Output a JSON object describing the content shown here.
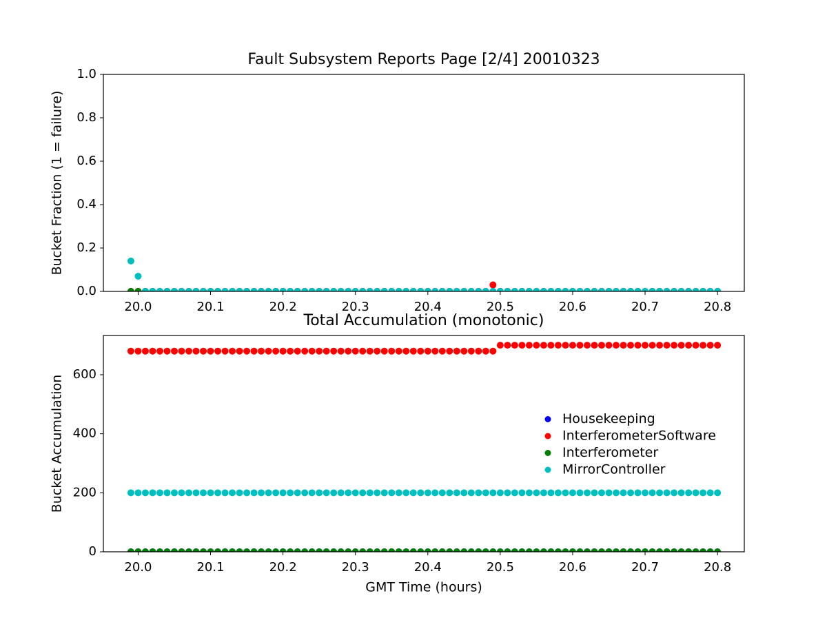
{
  "chart_data": [
    {
      "type": "scatter",
      "title": "Fault Subsystem Reports Page [2/4] 20010323",
      "y_label": "Bucket Fraction (1 = failure)",
      "xlim": [
        19.952,
        20.837
      ],
      "ylim": [
        0,
        1
      ],
      "xticks": [
        {
          "value": 20.0,
          "label": "20.0"
        },
        20.1,
        20.2,
        20.3,
        20.4,
        20.5,
        20.6,
        20.7,
        20.8
      ],
      "yticks": [
        {
          "value": 0,
          "label": "0.0"
        },
        0.2,
        0.4,
        0.6,
        0.8,
        {
          "value": 1,
          "label": "1.0"
        }
      ],
      "x": [
        19.99,
        20.0,
        20.01,
        20.02,
        20.03,
        20.04,
        20.05,
        20.06,
        20.07,
        20.08,
        20.09,
        20.1,
        20.11,
        20.12,
        20.13,
        20.14,
        20.15,
        20.16,
        20.17,
        20.18,
        20.19,
        20.2,
        20.21,
        20.22,
        20.23,
        20.24,
        20.25,
        20.26,
        20.27,
        20.28,
        20.29,
        20.3,
        20.31,
        20.32,
        20.33,
        20.34,
        20.35,
        20.36,
        20.37,
        20.38,
        20.39,
        20.4,
        20.41,
        20.42,
        20.43,
        20.44,
        20.45,
        20.46,
        20.47,
        20.48,
        20.49,
        20.5,
        20.51,
        20.52,
        20.53,
        20.54,
        20.55,
        20.56,
        20.57,
        20.58,
        20.59,
        20.6,
        20.61,
        20.62,
        20.63,
        20.64,
        20.65,
        20.66,
        20.67,
        20.68,
        20.69,
        20.7,
        20.71,
        20.72,
        20.73,
        20.74,
        20.75,
        20.76,
        20.77,
        20.78,
        20.79,
        20.8
      ],
      "series": [
        {
          "name": "Housekeeping",
          "color": "#0000ff",
          "values": [
            0,
            0,
            0,
            0,
            0,
            0,
            0,
            0,
            0,
            0,
            0,
            0,
            0,
            0,
            0,
            0,
            0,
            0,
            0,
            0,
            0,
            0,
            0,
            0,
            0,
            0,
            0,
            0,
            0,
            0,
            0,
            0,
            0,
            0,
            0,
            0,
            0,
            0,
            0,
            0,
            0,
            0,
            0,
            0,
            0,
            0,
            0,
            0,
            0,
            0,
            0,
            0,
            0,
            0,
            0,
            0,
            0,
            0,
            0,
            0,
            0,
            0,
            0,
            0,
            0,
            0,
            0,
            0,
            0,
            0,
            0,
            0,
            0,
            0,
            0,
            0,
            0,
            0,
            0,
            0,
            0,
            0
          ]
        },
        {
          "name": "InterferometerSoftware",
          "color": "#ff0000",
          "values": [
            0,
            0,
            0,
            0,
            0,
            0,
            0,
            0,
            0,
            0,
            0,
            0,
            0,
            0,
            0,
            0,
            0,
            0,
            0,
            0,
            0,
            0,
            0,
            0,
            0,
            0,
            0,
            0,
            0,
            0,
            0,
            0,
            0,
            0,
            0,
            0,
            0,
            0,
            0,
            0,
            0,
            0,
            0,
            0,
            0,
            0,
            0,
            0,
            0,
            0,
            0.03,
            0,
            0,
            0,
            0,
            0,
            0,
            0,
            0,
            0,
            0,
            0,
            0,
            0,
            0,
            0,
            0,
            0,
            0,
            0,
            0,
            0,
            0,
            0,
            0,
            0,
            0,
            0,
            0,
            0,
            0,
            0
          ]
        },
        {
          "name": "Interferometer",
          "color": "#008000",
          "values": [
            0,
            0,
            0,
            0,
            0,
            0,
            0,
            0,
            0,
            0,
            0,
            0,
            0,
            0,
            0,
            0,
            0,
            0,
            0,
            0,
            0,
            0,
            0,
            0,
            0,
            0,
            0,
            0,
            0,
            0,
            0,
            0,
            0,
            0,
            0,
            0,
            0,
            0,
            0,
            0,
            0,
            0,
            0,
            0,
            0,
            0,
            0,
            0,
            0,
            0,
            0,
            0,
            0,
            0,
            0,
            0,
            0,
            0,
            0,
            0,
            0,
            0,
            0,
            0,
            0,
            0,
            0,
            0,
            0,
            0,
            0,
            0,
            0,
            0,
            0,
            0,
            0,
            0,
            0,
            0,
            0,
            0
          ]
        },
        {
          "name": "MirrorController",
          "color": "#00bfbf",
          "values": [
            0.14,
            0.07,
            0,
            0,
            0,
            0,
            0,
            0,
            0,
            0,
            0,
            0,
            0,
            0,
            0,
            0,
            0,
            0,
            0,
            0,
            0,
            0,
            0,
            0,
            0,
            0,
            0,
            0,
            0,
            0,
            0,
            0,
            0,
            0,
            0,
            0,
            0,
            0,
            0,
            0,
            0,
            0,
            0,
            0,
            0,
            0,
            0,
            0,
            0,
            0,
            0,
            0,
            0,
            0,
            0,
            0,
            0,
            0,
            0,
            0,
            0,
            0,
            0,
            0,
            0,
            0,
            0,
            0,
            0,
            0,
            0,
            0,
            0,
            0,
            0,
            0,
            0,
            0,
            0,
            0,
            0,
            0
          ]
        }
      ]
    },
    {
      "type": "scatter",
      "title": "Total Accumulation (monotonic)",
      "x_label": "GMT Time (hours)",
      "y_label": "Bucket Accumulation",
      "xlim": [
        19.952,
        20.837
      ],
      "ylim": [
        0,
        733
      ],
      "xticks": [
        {
          "value": 20.0,
          "label": "20.0"
        },
        20.1,
        20.2,
        20.3,
        20.4,
        20.5,
        20.6,
        20.7,
        20.8
      ],
      "yticks": [
        0,
        200,
        400,
        600
      ],
      "legend": "center right",
      "x": [
        19.99,
        20.0,
        20.01,
        20.02,
        20.03,
        20.04,
        20.05,
        20.06,
        20.07,
        20.08,
        20.09,
        20.1,
        20.11,
        20.12,
        20.13,
        20.14,
        20.15,
        20.16,
        20.17,
        20.18,
        20.19,
        20.2,
        20.21,
        20.22,
        20.23,
        20.24,
        20.25,
        20.26,
        20.27,
        20.28,
        20.29,
        20.3,
        20.31,
        20.32,
        20.33,
        20.34,
        20.35,
        20.36,
        20.37,
        20.38,
        20.39,
        20.4,
        20.41,
        20.42,
        20.43,
        20.44,
        20.45,
        20.46,
        20.47,
        20.48,
        20.49,
        20.5,
        20.51,
        20.52,
        20.53,
        20.54,
        20.55,
        20.56,
        20.57,
        20.58,
        20.59,
        20.6,
        20.61,
        20.62,
        20.63,
        20.64,
        20.65,
        20.66,
        20.67,
        20.68,
        20.69,
        20.7,
        20.71,
        20.72,
        20.73,
        20.74,
        20.75,
        20.76,
        20.77,
        20.78,
        20.79,
        20.8
      ],
      "series": [
        {
          "name": "Housekeeping",
          "color": "#0000ff",
          "values": [
            0,
            0,
            0,
            0,
            0,
            0,
            0,
            0,
            0,
            0,
            0,
            0,
            0,
            0,
            0,
            0,
            0,
            0,
            0,
            0,
            0,
            0,
            0,
            0,
            0,
            0,
            0,
            0,
            0,
            0,
            0,
            0,
            0,
            0,
            0,
            0,
            0,
            0,
            0,
            0,
            0,
            0,
            0,
            0,
            0,
            0,
            0,
            0,
            0,
            0,
            0,
            0,
            0,
            0,
            0,
            0,
            0,
            0,
            0,
            0,
            0,
            0,
            0,
            0,
            0,
            0,
            0,
            0,
            0,
            0,
            0,
            0,
            0,
            0,
            0,
            0,
            0,
            0,
            0,
            0,
            0,
            0
          ]
        },
        {
          "name": "InterferometerSoftware",
          "color": "#ff0000",
          "values": [
            680,
            680,
            680,
            680,
            680,
            680,
            680,
            680,
            680,
            680,
            680,
            680,
            680,
            680,
            680,
            680,
            680,
            680,
            680,
            680,
            680,
            680,
            680,
            680,
            680,
            680,
            680,
            680,
            680,
            680,
            680,
            680,
            680,
            680,
            680,
            680,
            680,
            680,
            680,
            680,
            680,
            680,
            680,
            680,
            680,
            680,
            680,
            680,
            680,
            680,
            680,
            700,
            700,
            700,
            700,
            700,
            700,
            700,
            700,
            700,
            700,
            700,
            700,
            700,
            700,
            700,
            700,
            700,
            700,
            700,
            700,
            700,
            700,
            700,
            700,
            700,
            700,
            700,
            700,
            700,
            700,
            700
          ]
        },
        {
          "name": "Interferometer",
          "color": "#008000",
          "values": [
            0,
            0,
            0,
            0,
            0,
            0,
            0,
            0,
            0,
            0,
            0,
            0,
            0,
            0,
            0,
            0,
            0,
            0,
            0,
            0,
            0,
            0,
            0,
            0,
            0,
            0,
            0,
            0,
            0,
            0,
            0,
            0,
            0,
            0,
            0,
            0,
            0,
            0,
            0,
            0,
            0,
            0,
            0,
            0,
            0,
            0,
            0,
            0,
            0,
            0,
            0,
            0,
            0,
            0,
            0,
            0,
            0,
            0,
            0,
            0,
            0,
            0,
            0,
            0,
            0,
            0,
            0,
            0,
            0,
            0,
            0,
            0,
            0,
            0,
            0,
            0,
            0,
            0,
            0,
            0,
            0,
            0
          ]
        },
        {
          "name": "MirrorController",
          "color": "#00bfbf",
          "values": [
            200,
            200,
            200,
            200,
            200,
            200,
            200,
            200,
            200,
            200,
            200,
            200,
            200,
            200,
            200,
            200,
            200,
            200,
            200,
            200,
            200,
            200,
            200,
            200,
            200,
            200,
            200,
            200,
            200,
            200,
            200,
            200,
            200,
            200,
            200,
            200,
            200,
            200,
            200,
            200,
            200,
            200,
            200,
            200,
            200,
            200,
            200,
            200,
            200,
            200,
            200,
            200,
            200,
            200,
            200,
            200,
            200,
            200,
            200,
            200,
            200,
            200,
            200,
            200,
            200,
            200,
            200,
            200,
            200,
            200,
            200,
            200,
            200,
            200,
            200,
            200,
            200,
            200,
            200,
            200,
            200,
            200
          ]
        }
      ]
    }
  ]
}
